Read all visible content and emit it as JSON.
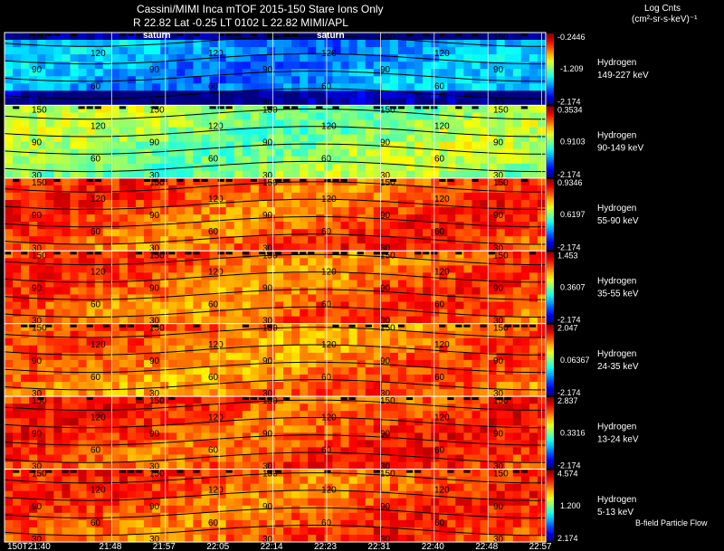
{
  "header": {
    "title": "Cassini/MIMI Inca mTOF  2015-150   Stare   Ions Only",
    "subtitle": "R          22.82 Lat -0.25 LT 0102 L          22.82  MIMI/APL",
    "units_title": "Log Cnts",
    "units_sub": "(cm²-sr-s-keV)⁻¹",
    "flow_label": "B-field Particle Flow"
  },
  "chart_data": {
    "type": "heatmap",
    "title": "Cassini/MIMI Inca mTOF  2015-150   Stare   Ions Only",
    "x_tick_labels": [
      "150T21:40",
      "21:48",
      "21:57",
      "22:05",
      "22:14",
      "22:23",
      "22:31",
      "22:40",
      "22:48",
      "22:57"
    ],
    "contour_labels": [
      "150",
      "120",
      "90",
      "60",
      "30"
    ],
    "overlay_labels": [
      "saturn",
      "saturn"
    ],
    "panels": [
      {
        "species": "Hydrogen",
        "energy": "149-227 keV",
        "cmax": "-0.2446",
        "cmid": "-1.209",
        "cmin": "-2.174",
        "level": 0.28
      },
      {
        "species": "Hydrogen",
        "energy": "90-149 keV",
        "cmax": "0.3534",
        "cmid": "0.9103",
        "cmin": "-2.174",
        "level": 0.52
      },
      {
        "species": "Hydrogen",
        "energy": "55-90 keV",
        "cmax": "0.9346",
        "cmid": "0.6197",
        "cmin": "-2.174",
        "level": 0.8
      },
      {
        "species": "Hydrogen",
        "energy": "35-55 keV",
        "cmax": "1.453",
        "cmid": "0.3607",
        "cmin": "-2.174",
        "level": 0.78
      },
      {
        "species": "Hydrogen",
        "energy": "24-35 keV",
        "cmax": "2.047",
        "cmid": "0.06367",
        "cmin": "-2.174",
        "level": 0.76
      },
      {
        "species": "Hydrogen",
        "energy": "13-24 keV",
        "cmax": "2.837",
        "cmid": "0.3316",
        "cmin": "-2.174",
        "level": 0.82
      },
      {
        "species": "Hydrogen",
        "energy": "5-13 keV",
        "cmax": "4.574",
        "cmid": "1.200",
        "cmin": "2.174",
        "level": 0.8
      }
    ],
    "colors": {
      "low": "#0000ff",
      "mid": "#00ff80",
      "high": "#ff0000",
      "background": "#000000",
      "grid": "#ffffff"
    }
  }
}
